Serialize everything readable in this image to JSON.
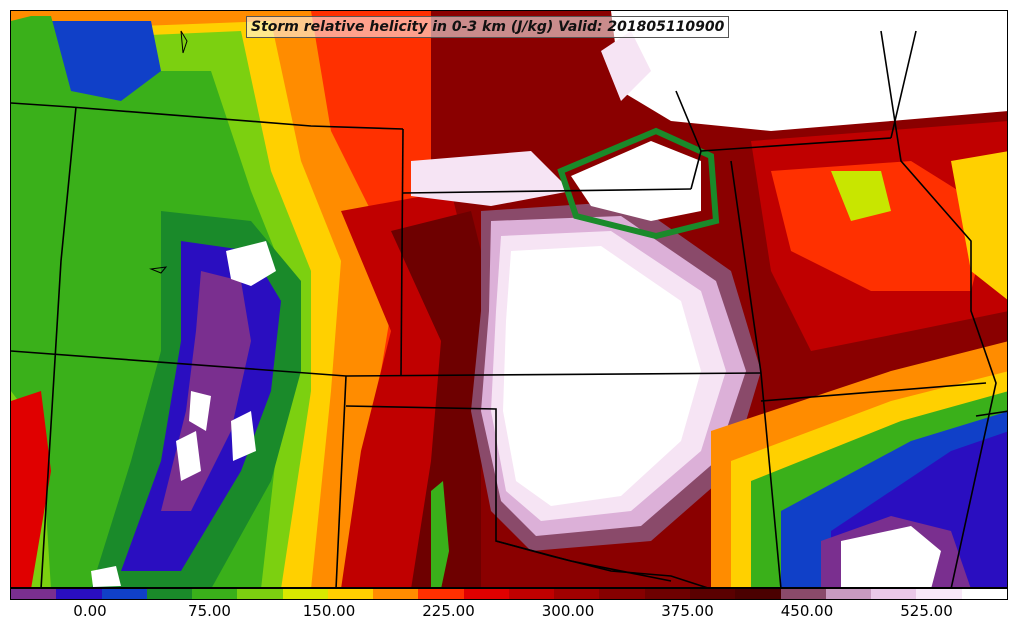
{
  "title": "Storm relative helicity in 0-3 km (J/kg) Valid: 201805110900",
  "colorbar": {
    "ticks": [
      "0.00",
      "75.00",
      "150.00",
      "225.00",
      "300.00",
      "375.00",
      "450.00",
      "525.00"
    ],
    "colors": [
      "#7a2f8f",
      "#2a0ec0",
      "#1040c8",
      "#1a8a2a",
      "#3ab01a",
      "#7cd010",
      "#d8e800",
      "#ffd000",
      "#ff8c00",
      "#ff3000",
      "#e00000",
      "#c00000",
      "#a00000",
      "#860000",
      "#6e0000",
      "#5a0000",
      "#4a0000",
      "#8a4a6a",
      "#c89ac0",
      "#eac8e8",
      "#f8e8f8",
      "#ffffff"
    ]
  },
  "map": {
    "region": "Central and western United States",
    "palette": {
      "white": "#ffffff",
      "pale_pink": "#f6e4f4",
      "pink": "#dcb0d8",
      "mauve": "#8a4a6a",
      "dark_maroon": "#4a0000",
      "maroon": "#7a0000",
      "dark_red": "#a00000",
      "red": "#e00000",
      "orange_red": "#ff3000",
      "orange": "#ff8c00",
      "yellow": "#ffd000",
      "yellow_green": "#c8e600",
      "light_green": "#3ab01a",
      "green": "#1a8a2a",
      "blue": "#1040c8",
      "dark_blue": "#2a0ec0",
      "purple": "#7a2f8f"
    }
  }
}
